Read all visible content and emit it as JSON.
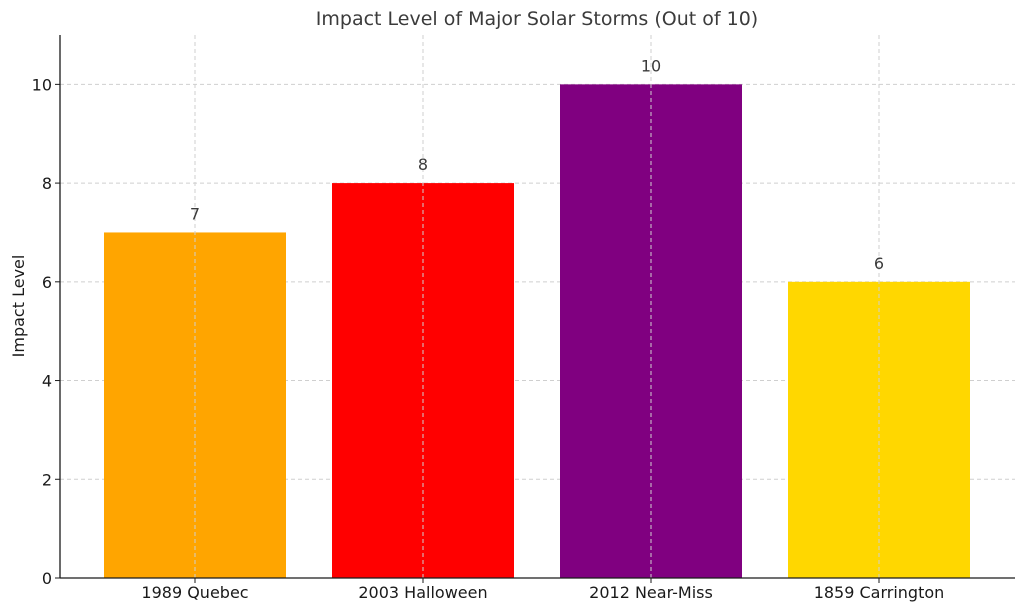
{
  "chart_data": {
    "type": "bar",
    "title": "Impact Level of Major Solar Storms (Out of 10)",
    "xlabel": "",
    "ylabel": "Impact Level",
    "categories": [
      "1989 Quebec",
      "2003 Halloween",
      "2012 Near-Miss",
      "1859 Carrington"
    ],
    "values": [
      7,
      8,
      10,
      6
    ],
    "data_labels": [
      "7",
      "8",
      "10",
      "6"
    ],
    "colors": [
      "#FFA500",
      "#FF0000",
      "#800080",
      "#FFD700"
    ],
    "ylim": [
      0,
      11
    ],
    "yticks": [
      0,
      2,
      4,
      6,
      8,
      10
    ],
    "ytick_labels": [
      "0",
      "2",
      "4",
      "6",
      "8",
      "10"
    ],
    "grid": true,
    "legend": "none"
  }
}
